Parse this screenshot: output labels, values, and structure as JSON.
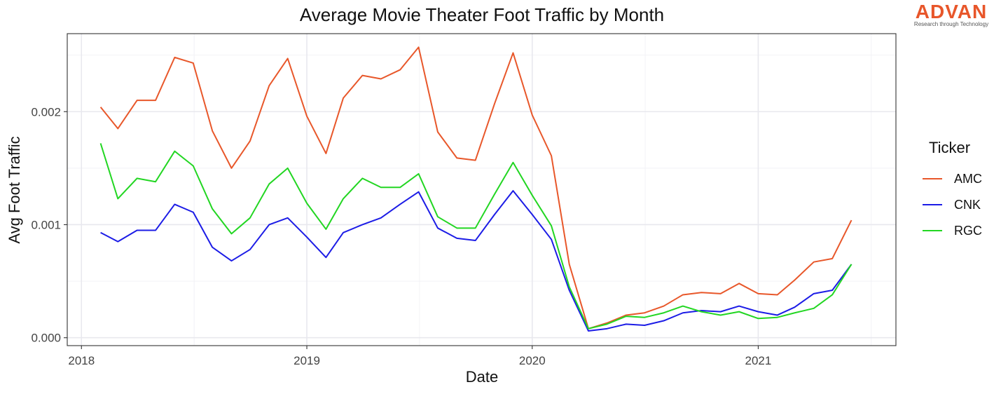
{
  "logo": {
    "name": "ADVAN",
    "tagline": "Research through Technology",
    "color": "#e8562a"
  },
  "chart_data": {
    "type": "line",
    "title": "Average Movie Theater Foot Traffic by Month",
    "xlabel": "Date",
    "ylabel": "Avg Foot Traffic",
    "xlim": [
      "2017-12-09",
      "2021-08-12"
    ],
    "ylim": [
      -7e-05,
      0.00269
    ],
    "x_ticks": [
      "2018-01-01",
      "2019-01-01",
      "2020-01-01",
      "2021-01-01"
    ],
    "x_tick_labels": [
      "2018",
      "2019",
      "2020",
      "2021"
    ],
    "y_ticks": [
      0.0,
      0.001,
      0.002
    ],
    "y_tick_labels": [
      "0.000",
      "0.001",
      "0.002"
    ],
    "grid": true,
    "legend": {
      "title": "Ticker",
      "position": "right"
    },
    "x": [
      "2018-02-01",
      "2018-03-01",
      "2018-04-01",
      "2018-05-01",
      "2018-06-01",
      "2018-07-01",
      "2018-08-01",
      "2018-09-01",
      "2018-10-01",
      "2018-11-01",
      "2018-12-01",
      "2019-01-01",
      "2019-02-01",
      "2019-03-01",
      "2019-04-01",
      "2019-05-01",
      "2019-06-01",
      "2019-07-01",
      "2019-08-01",
      "2019-09-01",
      "2019-10-01",
      "2019-11-01",
      "2019-12-01",
      "2020-01-01",
      "2020-02-01",
      "2020-03-01",
      "2020-04-01",
      "2020-05-01",
      "2020-06-01",
      "2020-07-01",
      "2020-08-01",
      "2020-09-01",
      "2020-10-01",
      "2020-11-01",
      "2020-12-01",
      "2021-01-01",
      "2021-02-01",
      "2021-03-01",
      "2021-04-01",
      "2021-05-01",
      "2021-06-01"
    ],
    "series": [
      {
        "name": "AMC",
        "color": "#e8572a",
        "values": [
          0.00204,
          0.00185,
          0.0021,
          0.0021,
          0.00248,
          0.00243,
          0.00183,
          0.0015,
          0.00174,
          0.00223,
          0.00247,
          0.00196,
          0.00163,
          0.00212,
          0.00232,
          0.00229,
          0.00237,
          0.00257,
          0.00182,
          0.00159,
          0.00157,
          0.00207,
          0.00252,
          0.00197,
          0.00161,
          0.00065,
          8e-05,
          0.00013,
          0.0002,
          0.00022,
          0.00028,
          0.00038,
          0.0004,
          0.00039,
          0.00048,
          0.00039,
          0.00038,
          0.00051,
          0.00067,
          0.0007,
          0.00104
        ]
      },
      {
        "name": "CNK",
        "color": "#1c1ce6",
        "values": [
          0.00093,
          0.00085,
          0.00095,
          0.00095,
          0.00118,
          0.00111,
          0.0008,
          0.00068,
          0.00078,
          0.001,
          0.00106,
          0.00089,
          0.00071,
          0.00093,
          0.001,
          0.00106,
          0.00118,
          0.00129,
          0.00097,
          0.00088,
          0.00086,
          0.00109,
          0.0013,
          0.00109,
          0.00087,
          0.00042,
          6e-05,
          8e-05,
          0.00012,
          0.00011,
          0.00015,
          0.00022,
          0.00024,
          0.00023,
          0.00028,
          0.00023,
          0.0002,
          0.00027,
          0.00039,
          0.00042,
          0.00065
        ]
      },
      {
        "name": "RGC",
        "color": "#22d622",
        "values": [
          0.00172,
          0.00123,
          0.00141,
          0.00138,
          0.00165,
          0.00152,
          0.00114,
          0.00092,
          0.00106,
          0.00136,
          0.0015,
          0.00119,
          0.00096,
          0.00123,
          0.00141,
          0.00133,
          0.00133,
          0.00145,
          0.00107,
          0.00097,
          0.00097,
          0.00127,
          0.00155,
          0.00126,
          0.00099,
          0.00045,
          8e-05,
          0.00012,
          0.00019,
          0.00018,
          0.00022,
          0.00028,
          0.00023,
          0.0002,
          0.00023,
          0.00017,
          0.00018,
          0.00022,
          0.00026,
          0.00038,
          0.00065
        ]
      }
    ]
  }
}
